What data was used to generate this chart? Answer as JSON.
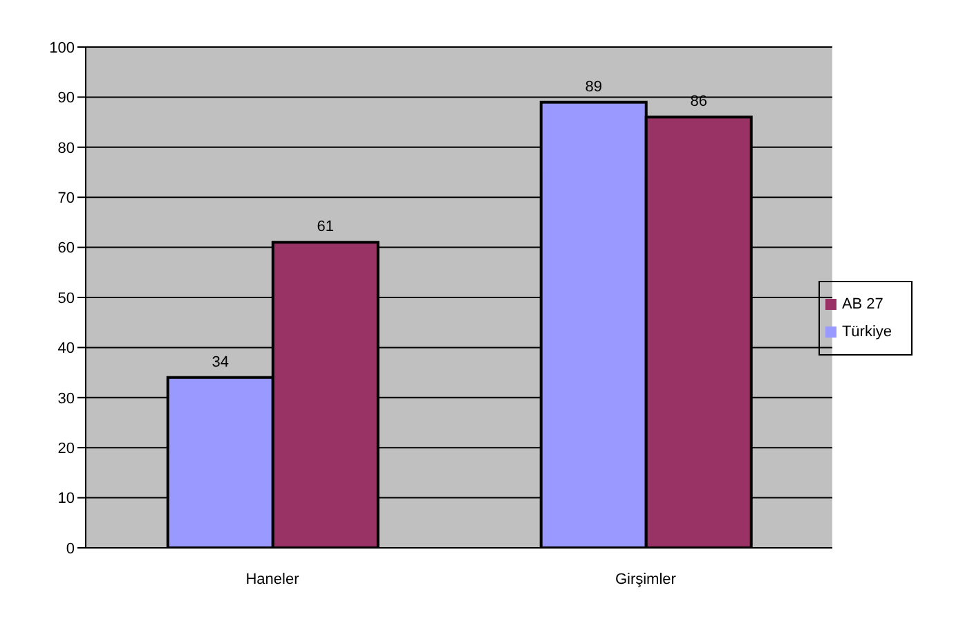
{
  "chart_data": {
    "type": "bar",
    "categories": [
      "Haneler",
      "Girşimler"
    ],
    "series": [
      {
        "name": "Türkiye",
        "color": "#9999ff",
        "values": [
          34,
          89
        ]
      },
      {
        "name": "AB 27",
        "color": "#993366",
        "values": [
          61,
          86
        ]
      }
    ],
    "ylim": [
      0,
      100
    ],
    "yticks": [
      0,
      10,
      20,
      30,
      40,
      50,
      60,
      70,
      80,
      90,
      100
    ],
    "grid": "y",
    "legend": "right",
    "data_labels": true
  }
}
